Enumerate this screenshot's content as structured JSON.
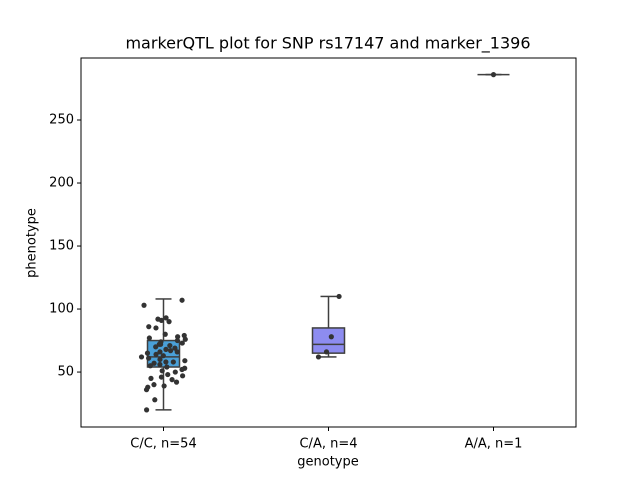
{
  "chart_data": {
    "type": "box",
    "title": "markerQTL plot for SNP rs17147 and marker_1396",
    "x_label": "genotype",
    "y_label": "phenotype",
    "categories": [
      "C/C, n=54",
      "C/A, n=4",
      "A/A, n=1"
    ],
    "colors": [
      "#4aa0d8",
      "#8d8cf0",
      "#e78fd2"
    ],
    "boxes": [
      {
        "whislo": 20,
        "q1": 54,
        "med": 62,
        "q3": 75,
        "whishi": 108
      },
      {
        "whislo": 62,
        "q1": 65,
        "med": 72,
        "q3": 85,
        "whishi": 110
      },
      {
        "whislo": 286,
        "q1": 286,
        "med": 286,
        "q3": 286,
        "whishi": 286
      }
    ],
    "points": [
      [
        107,
        103,
        93,
        92,
        91,
        90,
        86,
        85,
        80,
        79,
        78,
        77,
        76,
        75,
        74,
        73,
        72,
        71,
        70,
        69,
        68,
        67,
        66,
        65,
        64,
        63,
        62,
        61,
        60,
        59,
        58,
        57,
        56,
        55,
        54,
        53,
        52,
        51,
        50,
        48,
        47,
        46,
        45,
        44,
        42,
        40,
        39,
        38,
        36,
        28,
        20,
        66,
        58,
        72
      ],
      [
        110,
        78,
        66,
        62
      ],
      [
        286
      ]
    ],
    "ylim": [
      6.4,
      299.2
    ],
    "yticks": [
      50,
      100,
      150,
      200,
      250
    ]
  }
}
